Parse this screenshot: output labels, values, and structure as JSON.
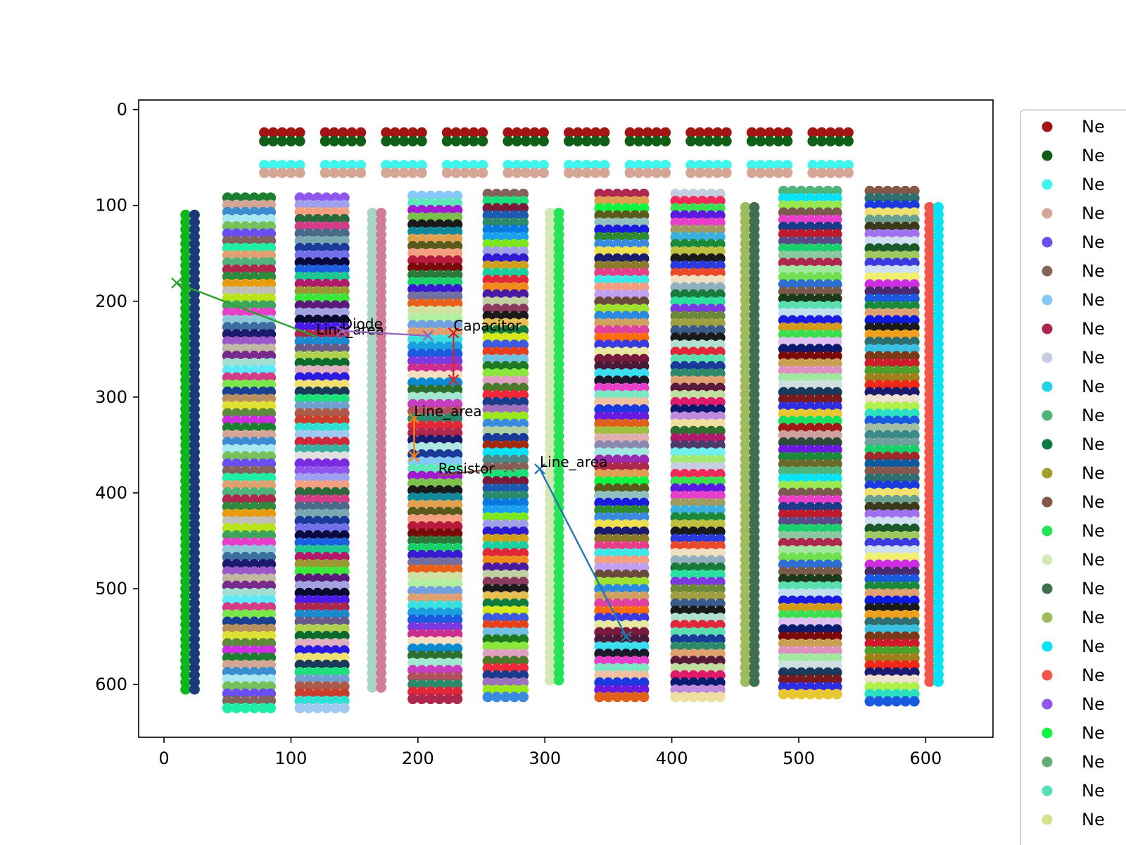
{
  "chart_data": {
    "type": "scatter",
    "title": "",
    "xlabel": "",
    "ylabel": "",
    "xlim": [
      -20,
      653
    ],
    "ylim": [
      655,
      -10
    ],
    "y_inverted": true,
    "grid": false,
    "legend_placement": "right-outside",
    "x_ticks": [
      0,
      100,
      200,
      300,
      400,
      500,
      600
    ],
    "y_ticks": [
      0,
      100,
      200,
      300,
      400,
      500,
      600
    ],
    "legend_entries": [
      {
        "label": "Ne",
        "color": "#a11515"
      },
      {
        "label": "Ne",
        "color": "#0f5f17"
      },
      {
        "label": "Ne",
        "color": "#3ef6ee"
      },
      {
        "label": "Ne",
        "color": "#d5a595"
      },
      {
        "label": "Ne",
        "color": "#6a4ef3"
      },
      {
        "label": "Ne",
        "color": "#84645a"
      },
      {
        "label": "Ne",
        "color": "#86c8fa"
      },
      {
        "label": "Ne",
        "color": "#ae274d"
      },
      {
        "label": "Ne",
        "color": "#c7cde0"
      },
      {
        "label": "Ne",
        "color": "#22d3e6"
      },
      {
        "label": "Ne",
        "color": "#4fb47a"
      },
      {
        "label": "Ne",
        "color": "#0e7a3e"
      },
      {
        "label": "Ne",
        "color": "#9fa02b"
      },
      {
        "label": "Ne",
        "color": "#85584b"
      },
      {
        "label": "Ne",
        "color": "#24e457"
      },
      {
        "label": "Ne",
        "color": "#d4e8b6"
      },
      {
        "label": "Ne",
        "color": "#3f6e50"
      },
      {
        "label": "Ne",
        "color": "#9fbb5c"
      },
      {
        "label": "Ne",
        "color": "#07e3f6"
      },
      {
        "label": "Ne",
        "color": "#f5554b"
      },
      {
        "label": "Ne",
        "color": "#8f55ec"
      },
      {
        "label": "Ne",
        "color": "#0ff540"
      },
      {
        "label": "Ne",
        "color": "#62ae76"
      },
      {
        "label": "Ne",
        "color": "#55e1b7"
      },
      {
        "label": "Ne",
        "color": "#d3e38f"
      }
    ],
    "top_groups": {
      "x_starts": [
        79,
        127,
        175,
        223,
        271,
        319,
        367,
        415,
        463,
        511
      ],
      "x_step": 7,
      "points_per_group": 5,
      "rows": [
        {
          "y": 24,
          "color": "#a11515"
        },
        {
          "y": 33,
          "color": "#0f5f17"
        },
        {
          "y": 58,
          "color": "#3ef6ee"
        },
        {
          "y": 66,
          "color": "#d5a595"
        }
      ]
    },
    "columns": [
      {
        "x": [
          17,
          24
        ],
        "y_start": 110,
        "y_end": 605,
        "pattern": "alternate",
        "colors": [
          "#0fb51b",
          "#1a3a7a"
        ]
      },
      {
        "x": [
          50,
          57,
          64,
          71,
          78,
          84
        ],
        "y_start": 92,
        "y_end": 625,
        "pattern": "striped",
        "colors": [
          "#1a7f2e",
          "#d5a595",
          "#3c8cd0",
          "#a8e8f0",
          "#77c15a",
          "#6a4ef3",
          "#84645a",
          "#1cf0a6",
          "#e0a070",
          "#4fb47a",
          "#ae274d",
          "#2e8b3e",
          "#e89d10",
          "#c0c0b8",
          "#b7e51a",
          "#3da55c",
          "#e83ec9",
          "#8cc9d6",
          "#3c6ea0",
          "#1a1a6e",
          "#9a58c8",
          "#c0b8a0",
          "#7a2a8a",
          "#a0e0d0",
          "#5ce8f8",
          "#d43c86",
          "#7ae84a",
          "#1a4090",
          "#b98f5d",
          "#e0e030",
          "#5a8a3a",
          "#cc2ee0"
        ]
      },
      {
        "x": [
          107,
          114,
          121,
          128,
          135,
          142
        ],
        "y_start": 92,
        "y_end": 625,
        "pattern": "striped",
        "colors": [
          "#8f55ec",
          "#a0a0f0",
          "#f4a080",
          "#2a6a3a",
          "#d43c86",
          "#4a6a8a",
          "#7aa8b0",
          "#1c3a9a",
          "#7070e8",
          "#0a0a40",
          "#1a60e0",
          "#1cc890",
          "#b01a6a",
          "#9a9a30",
          "#3ae83a",
          "#5a1a7a",
          "#a2a2e0",
          "#0a0a30",
          "#4a1ae8",
          "#ae274d",
          "#1a8ad0",
          "#6a5a8a",
          "#b0d050",
          "#0a6a2a",
          "#e0b0c0",
          "#2a1ae0",
          "#f0e070",
          "#1a3a5a",
          "#1ce07a",
          "#70a0d0",
          "#ae5a4a",
          "#c83e2a",
          "#2ee0d0",
          "#a0c8f0",
          "#d0283a",
          "#3ab0a0",
          "#e0e0e0",
          "#7a2ae0"
        ]
      },
      {
        "x": [
          164,
          171
        ],
        "y_start": 108,
        "y_end": 605,
        "pattern": "alternate",
        "colors": [
          "#a8d6c5",
          "#d27c9d"
        ]
      },
      {
        "x": [
          196,
          203,
          210,
          217,
          224,
          231
        ],
        "y_start": 90,
        "y_end": 620,
        "pattern": "striped",
        "colors": [
          "#86c8fa",
          "#5ce8b8",
          "#a01ad0",
          "#7ac04a",
          "#1a1a1a",
          "#0f8a9a",
          "#e0a050",
          "#5a5a1a",
          "#f4a080",
          "#b71a3a",
          "#7a0a0a",
          "#2a7a3a",
          "#1ad06a",
          "#3a1ad0",
          "#7070a0",
          "#e8601a",
          "#d0e0a0",
          "#b0f0a0",
          "#70a0e0",
          "#e0a070",
          "#3ae0e0",
          "#1aa0e0",
          "#1a5ae0",
          "#7a3ae0",
          "#cb2e8e",
          "#f4e0c0",
          "#0a8ad0",
          "#2e6e2e",
          "#a0e8d0",
          "#c83ec0",
          "#b0505a",
          "#2a8a6a",
          "#e0283a",
          "#ae274d",
          "#1a1a6e",
          "#b0e8e0",
          "#1a3a9a"
        ]
      },
      {
        "x": [
          255,
          262,
          269,
          276,
          283
        ],
        "y_start": 88,
        "y_end": 620,
        "pattern": "striped",
        "colors": [
          "#84645a",
          "#1ae07a",
          "#7a1a3a",
          "#1a5ab0",
          "#2a8a6a",
          "#0a7ae0",
          "#1aa0f0",
          "#7ae81a",
          "#a0a0e8",
          "#2e1ad0",
          "#d0a01a",
          "#1ad0a0",
          "#e0283a",
          "#f08a1a",
          "#4a1aa0",
          "#c0d0a0",
          "#8a3a5a",
          "#1a1a1a",
          "#e8c050",
          "#0e7a3e",
          "#d4e81a",
          "#3a5ae0",
          "#e8401a",
          "#70c0e0",
          "#1e7a1e",
          "#8ae83a",
          "#e0a0c0",
          "#4a7a2a",
          "#f0283a",
          "#1a3a8a",
          "#a070c0",
          "#9ae81a",
          "#3a8ae0",
          "#b0d0a0",
          "#1a3a9a",
          "#a02a0a",
          "#07e3f6",
          "#4a8a8a"
        ]
      },
      {
        "x": [
          304,
          311
        ],
        "y_start": 108,
        "y_end": 600,
        "pattern": "alternate",
        "colors": [
          "#d4e8b6",
          "#24e457"
        ]
      },
      {
        "x": [
          343,
          350,
          357,
          364,
          371,
          378
        ],
        "y_start": 88,
        "y_end": 620,
        "pattern": "striped",
        "colors": [
          "#ae274d",
          "#e0a050",
          "#0ff540",
          "#5a5a1a",
          "#90c0c0",
          "#1a1ae0",
          "#2e8a2e",
          "#3a8ae0",
          "#f0e050",
          "#1a1a6e",
          "#8a7a2a",
          "#e83e8a",
          "#3ae8e8",
          "#f4a080",
          "#c0a0f0",
          "#6a4a3a",
          "#a0e030",
          "#2a8ae0",
          "#d0a060",
          "#e040a0",
          "#ff6a0a",
          "#3a3ae0",
          "#e8e8a0",
          "#7a1a3a",
          "#4a1a3a",
          "#3ae0f0",
          "#1a1a2a",
          "#e83ec9",
          "#7ae8c0",
          "#f0c0a0",
          "#1a3ae0",
          "#6a1ae0",
          "#e0601a",
          "#a0c040",
          "#e0b0b0",
          "#8a8ab0",
          "#a0e8e0",
          "#9a2ab0"
        ]
      },
      {
        "x": [
          403,
          410,
          417,
          424,
          431,
          438
        ],
        "y_start": 88,
        "y_end": 620,
        "pattern": "striped",
        "colors": [
          "#c7cde0",
          "#f3285b",
          "#3ae050",
          "#5a1ae0",
          "#e83ec9",
          "#a09a60",
          "#3ab0e0",
          "#1a8a3a",
          "#c0c040",
          "#1a1a1a",
          "#2a3ae0",
          "#e84a2a",
          "#f0e0c0",
          "#90b0c0",
          "#1a7a3a",
          "#2ae0a0",
          "#7a3ae0",
          "#6a8a3a",
          "#a0a040",
          "#3a5a8a",
          "#1a1a1a",
          "#b0e0d0",
          "#e0283a",
          "#5ae0b0",
          "#1a3a9a",
          "#2a8a6a",
          "#e0a070",
          "#5a1a3a",
          "#c0e0a0",
          "#e01a6a",
          "#0a1a6e",
          "#c08ae0",
          "#f0e0a0",
          "#2e6e2e",
          "#b01a6a",
          "#4a3a6e",
          "#70f0f0",
          "#a0e870"
        ]
      },
      {
        "x": [
          458,
          465
        ],
        "y_start": 102,
        "y_end": 600,
        "pattern": "alternate",
        "colors": [
          "#9fbb5c",
          "#3f6e50"
        ]
      },
      {
        "x": [
          488,
          495,
          502,
          509,
          516,
          523,
          530
        ],
        "y_start": 85,
        "y_end": 615,
        "pattern": "striped",
        "colors": [
          "#4fb47a",
          "#07e3f6",
          "#9ae850",
          "#7a5a4a",
          "#e83ec9",
          "#1a3a8a",
          "#c01a2a",
          "#5a4a8a",
          "#1ad06a",
          "#8ac8a0",
          "#ae274d",
          "#a0e8a0",
          "#70e050",
          "#2e6ed0",
          "#7a5a4a",
          "#1a3a1a",
          "#5ae0b0",
          "#c0e0f0",
          "#1a1ae0",
          "#d49a1a",
          "#3ae050",
          "#e0c0f0",
          "#0a1a6e",
          "#7a0a0a",
          "#c8a050",
          "#e090c0",
          "#a0e8a0",
          "#d0e0e0",
          "#1a3a5a",
          "#7a1a1a",
          "#2e2ee0",
          "#e8c830",
          "#1ae060",
          "#a01a1a",
          "#d0a0a0",
          "#2a4a3a",
          "#6a1ae0",
          "#1a8a3a",
          "#6a6a2a"
        ]
      },
      {
        "x": [
          556,
          563,
          570,
          577,
          584,
          591
        ],
        "y_start": 85,
        "y_end": 620,
        "pattern": "striped",
        "colors": [
          "#85584b",
          "#2e6e6e",
          "#1a3ae0",
          "#f0e070",
          "#6aa090",
          "#3a3a1a",
          "#a070f0",
          "#d0e0f0",
          "#1a5a2a",
          "#a0c860",
          "#3a3ae0",
          "#d0e0f0",
          "#f0f070",
          "#cc2ee0",
          "#4a2a6e",
          "#1a5ae0",
          "#1a8a3a",
          "#e0a070",
          "#0a1ae0",
          "#1a1a1a",
          "#f0a01a",
          "#2e6e6e",
          "#3ac0e0",
          "#7a3a1a",
          "#d01a2a",
          "#4aa02a",
          "#a0801a",
          "#f0281a",
          "#1a1a6e",
          "#f0e0d0",
          "#b0f04a",
          "#2ae0c0",
          "#1a5ae0",
          "#a0c0a0",
          "#3a8a8a",
          "#70a0a0",
          "#1ad06a",
          "#a02a2a",
          "#0a5aa0"
        ]
      },
      {
        "x": [
          603,
          610
        ],
        "y_start": 102,
        "y_end": 597,
        "pattern": "alternate",
        "colors": [
          "#f5554b",
          "#07e3f6"
        ]
      }
    ],
    "annotations": [
      {
        "label": "Line_area",
        "color": "#2ca02c",
        "x": [
          10,
          120
        ],
        "y": [
          181,
          237
        ],
        "text_at": [
          120,
          237
        ],
        "marker_start": "x",
        "marker_end": ""
      },
      {
        "label": "Diode",
        "color": "#9467bd",
        "x": [
          140,
          208
        ],
        "y": [
          231,
          236
        ],
        "text_at": [
          140,
          231
        ],
        "marker_start": "x",
        "marker_end": "x"
      },
      {
        "label": "Capacitor",
        "color": "#d62728",
        "x": [
          228,
          228
        ],
        "y": [
          233,
          282
        ],
        "text_at": [
          228,
          233
        ],
        "marker_start": "x",
        "marker_end": "x"
      },
      {
        "label": "Line_area",
        "color": "#ff7f0e",
        "x": [
          197,
          197
        ],
        "y": [
          322,
          362
        ],
        "text_at": [
          197,
          322
        ],
        "marker_start": "x",
        "marker_end": "x"
      },
      {
        "label": "Resistor",
        "color": "#8c564b",
        "x": [
          216,
          272
        ],
        "y": [
          382,
          373
        ],
        "text_at": [
          216,
          382
        ],
        "marker_start": "",
        "marker_end": "x"
      },
      {
        "label": "Line_area",
        "color": "#1f77b4",
        "x": [
          296,
          364
        ],
        "y": [
          375,
          550
        ],
        "text_at": [
          296,
          375
        ],
        "marker_start": "x",
        "marker_end": "x"
      }
    ]
  }
}
